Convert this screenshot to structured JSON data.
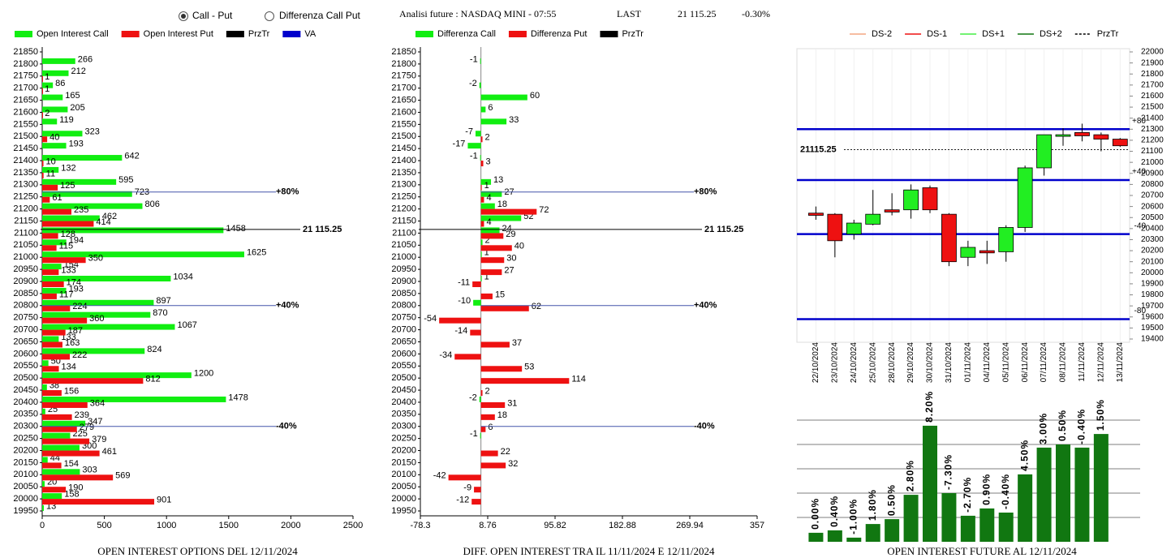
{
  "header": {
    "options": [
      {
        "label": "Call - Put",
        "selected": true
      },
      {
        "label": "Differenza Call Put",
        "selected": false
      }
    ],
    "title": "Analisi future : NASDAQ MINI - 07:55",
    "last_label": "LAST",
    "last": "21 115.25",
    "change": "-0.30%"
  },
  "chart_data": [
    {
      "type": "hbar",
      "x_label": "OPEN INTEREST OPTIONS DEL 12/11/2024",
      "categories": [
        21850,
        21800,
        21750,
        21700,
        21650,
        21600,
        21550,
        21500,
        21450,
        21400,
        21350,
        21300,
        21250,
        21200,
        21150,
        21100,
        21050,
        21000,
        20950,
        20900,
        20850,
        20800,
        20750,
        20700,
        20650,
        20600,
        20550,
        20500,
        20450,
        20400,
        20350,
        20300,
        20250,
        20200,
        20150,
        20100,
        20050,
        20000,
        19950
      ],
      "ylim": [
        19950,
        21850
      ],
      "xlim": [
        0,
        2500
      ],
      "xticks": [
        0,
        500,
        1000,
        1500,
        2000,
        2500
      ],
      "series": [
        {
          "name": "Open Interest Call",
          "color": "#11ee11",
          "values": [
            null,
            266,
            212,
            86,
            165,
            205,
            119,
            323,
            193,
            642,
            132,
            595,
            723,
            806,
            462,
            1458,
            194,
            1625,
            154,
            1034,
            193,
            897,
            870,
            1067,
            133,
            824,
            50,
            1200,
            38,
            1478,
            25,
            347,
            225,
            300,
            44,
            303,
            20,
            158,
            13
          ]
        },
        {
          "name": "Open Interest Put",
          "color": "#ee1111",
          "values": [
            null,
            null,
            1,
            1,
            null,
            2,
            null,
            40,
            null,
            10,
            11,
            125,
            61,
            235,
            414,
            128,
            115,
            350,
            133,
            174,
            117,
            224,
            360,
            187,
            163,
            222,
            134,
            812,
            156,
            364,
            239,
            279,
            379,
            461,
            154,
            569,
            190,
            901,
            null
          ]
        }
      ],
      "legend_extra": [
        {
          "name": "PrzTr",
          "color": "#000000"
        },
        {
          "name": "VA",
          "color": "#0000cc"
        }
      ],
      "reference_lines": [
        {
          "value": 21270,
          "label": "+80%"
        },
        {
          "value": 20800,
          "label": "+40%"
        },
        {
          "value": 20300,
          "label": "-40%"
        }
      ],
      "reference_color": "#4455aa",
      "price_line": {
        "value": 21115.25,
        "label": "21 115.25"
      }
    },
    {
      "type": "hbar",
      "x_label": "DIFF. OPEN INTEREST TRA IL 11/11/2024 E 12/11/2024",
      "categories": [
        21850,
        21800,
        21750,
        21700,
        21650,
        21600,
        21550,
        21500,
        21450,
        21400,
        21350,
        21300,
        21250,
        21200,
        21150,
        21100,
        21050,
        21000,
        20950,
        20900,
        20850,
        20800,
        20750,
        20700,
        20650,
        20600,
        20550,
        20500,
        20450,
        20400,
        20350,
        20300,
        20250,
        20200,
        20150,
        20100,
        20050,
        20000,
        19950
      ],
      "ylim": [
        19950,
        21850
      ],
      "xlim": [
        -78.3,
        357
      ],
      "xticks": [
        -78.3,
        8.76,
        95.82,
        182.88,
        269.94,
        357
      ],
      "series": [
        {
          "name": "Differenza Call",
          "color": "#11ee11",
          "values": [
            null,
            -1,
            null,
            -2,
            60,
            6,
            33,
            -7,
            -17,
            -1,
            null,
            13,
            27,
            18,
            52,
            24,
            2,
            1,
            null,
            1,
            null,
            -10,
            null,
            null,
            null,
            null,
            null,
            null,
            null,
            -2,
            null,
            null,
            -1,
            null,
            null,
            null,
            null,
            null,
            null
          ]
        },
        {
          "name": "Differenza Put",
          "color": "#ee1111",
          "values": [
            null,
            null,
            null,
            null,
            null,
            null,
            null,
            2,
            null,
            3,
            null,
            1,
            4,
            72,
            4,
            29,
            40,
            30,
            27,
            -11,
            15,
            62,
            -54,
            -14,
            37,
            -34,
            53,
            114,
            2,
            31,
            18,
            6,
            null,
            22,
            32,
            -42,
            -9,
            -12,
            null
          ]
        }
      ],
      "legend_extra": [
        {
          "name": "PrzTr",
          "color": "#000000"
        }
      ],
      "reference_lines": [
        {
          "value": 21270,
          "label": "+80%"
        },
        {
          "value": 20800,
          "label": "+40%"
        },
        {
          "value": 20300,
          "label": "-40%"
        }
      ],
      "reference_color": "#4455aa",
      "price_line": {
        "value": 21115.25,
        "label": "21 115.25"
      }
    },
    {
      "type": "candlestick",
      "x": [
        "22/10/2024",
        "23/10/2024",
        "24/10/2024",
        "25/10/2024",
        "28/10/2024",
        "29/10/2024",
        "30/10/2024",
        "31/10/2024",
        "01/11/2024",
        "04/11/2024",
        "05/11/2024",
        "06/11/2024",
        "07/11/2024",
        "08/11/2024",
        "11/11/2024",
        "12/11/2024",
        "13/11/2024"
      ],
      "open": [
        20540,
        20530,
        20350,
        20440,
        20570,
        20570,
        20770,
        20530,
        20140,
        20200,
        20190,
        20410,
        20950,
        21240,
        21270,
        21250,
        21210
      ],
      "high": [
        20600,
        20540,
        20480,
        20750,
        20720,
        20800,
        20790,
        20540,
        20290,
        20290,
        20430,
        20970,
        21250,
        21310,
        21350,
        21270,
        21220
      ],
      "low": [
        20480,
        20140,
        20300,
        20430,
        20520,
        20490,
        20540,
        20060,
        20060,
        20080,
        20100,
        20370,
        20880,
        21150,
        21190,
        21100,
        21140
      ],
      "close": [
        20520,
        20290,
        20450,
        20530,
        20550,
        20750,
        20570,
        20100,
        20230,
        20180,
        20410,
        20950,
        21250,
        21250,
        21240,
        21210,
        21150
      ],
      "ylim": [
        19400,
        22000
      ],
      "yticks": [
        19400,
        19500,
        19600,
        19700,
        19800,
        19900,
        20000,
        20100,
        20200,
        20300,
        20400,
        20500,
        20600,
        20700,
        20800,
        20900,
        21000,
        21100,
        21200,
        21300,
        21400,
        21500,
        21600,
        21700,
        21800,
        21900,
        22000
      ],
      "up_color": "#22ee22",
      "down_color": "#ee1111",
      "legend": [
        {
          "name": "DS-2",
          "color": "#f4a582",
          "dashed": false
        },
        {
          "name": "DS-1",
          "color": "#ee1111",
          "dashed": false
        },
        {
          "name": "DS+1",
          "color": "#44ee44",
          "dashed": false
        },
        {
          "name": "DS+2",
          "color": "#117711",
          "dashed": false
        },
        {
          "name": "PrzTr",
          "color": "#000000",
          "dashed": true
        }
      ],
      "bands": [
        {
          "value": 21300,
          "label": "+80"
        },
        {
          "value": 20840,
          "label": "+40"
        },
        {
          "value": 20350,
          "label": "-40"
        },
        {
          "value": 19580,
          "label": "-80"
        }
      ],
      "band_color": "#0000cc",
      "price_line": {
        "value": 21115.25
      }
    },
    {
      "type": "bar",
      "x_label": "OPEN INTEREST FUTURE AL 12/11/2024",
      "color": "#117711",
      "values": [
        0.37,
        0.47,
        0.17,
        0.73,
        0.93,
        1.93,
        4.77,
        2,
        1.07,
        1.37,
        1.2,
        2.77,
        3.87,
        4,
        3.87,
        4.43
      ],
      "changes": [
        {
          "value": 0,
          "label": "0.00%"
        },
        {
          "value": 0.4,
          "label": "0.40%"
        },
        {
          "value": -1,
          "label": "-1.00%"
        },
        {
          "value": 1.8,
          "label": "1.80%"
        },
        {
          "value": 0.5,
          "label": "0.50%"
        },
        {
          "value": 2.8,
          "label": "2.80%"
        },
        {
          "value": 8.2,
          "label": "8.20%"
        },
        {
          "value": -7.3,
          "label": "-7.30%"
        },
        {
          "value": -2.7,
          "label": "-2.70%"
        },
        {
          "value": 0.9,
          "label": "0.90%"
        },
        {
          "value": -0.4,
          "label": "-0.40%"
        },
        {
          "value": 4.5,
          "label": "4.50%"
        },
        {
          "value": 3,
          "label": "3.00%"
        },
        {
          "value": 0.5,
          "label": "0.50%"
        },
        {
          "value": -0.4,
          "label": "-0.40%"
        },
        {
          "value": 1.5,
          "label": "1.50%"
        }
      ],
      "ylim": [
        0,
        5
      ],
      "grid_lines": [
        1,
        2,
        3,
        4,
        5
      ]
    }
  ]
}
